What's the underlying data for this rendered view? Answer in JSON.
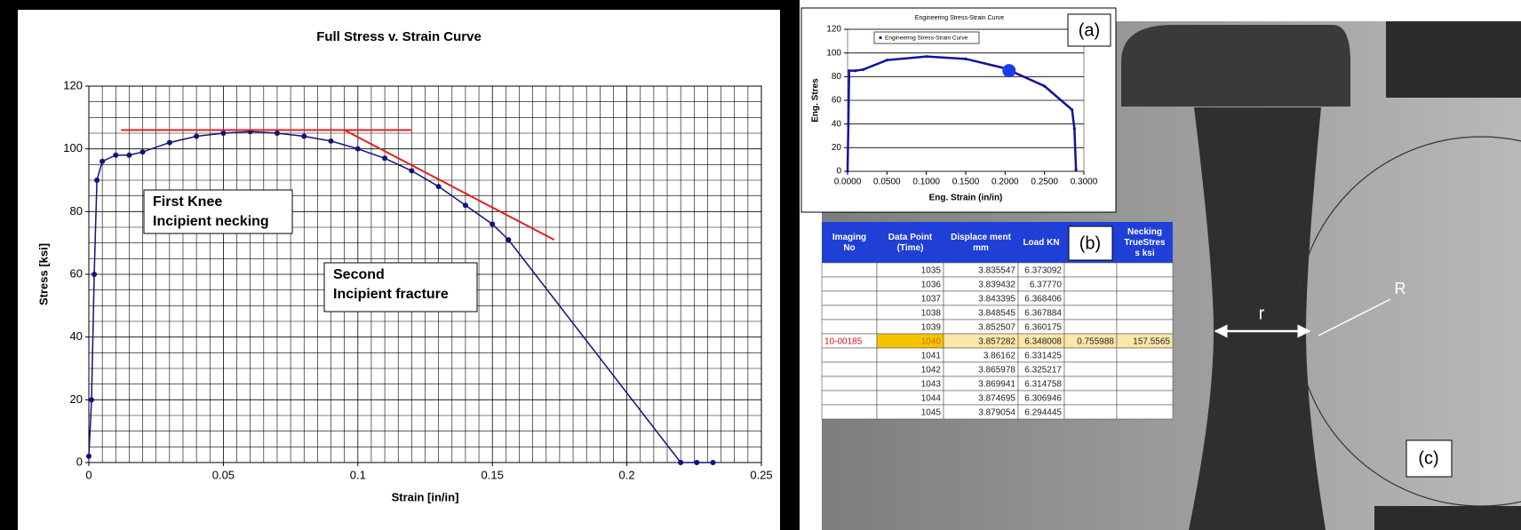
{
  "chart_data": [
    {
      "type": "line",
      "title": "Full Stress v. Strain Curve",
      "xlabel": "Strain [in/in]",
      "ylabel": "Stress [ksi]",
      "xlim": [
        0,
        0.25
      ],
      "xticks": [
        0,
        0.05,
        0.1,
        0.15,
        0.2,
        0.25
      ],
      "ylim": [
        0,
        120
      ],
      "yticks": [
        0,
        20,
        40,
        60,
        80,
        100,
        120
      ],
      "grid": "xy",
      "minor_grid": true,
      "series": [
        {
          "color": "#10137a",
          "marker": true,
          "x": [
            0,
            0.001,
            0.002,
            0.003,
            0.005,
            0.01,
            0.015,
            0.02,
            0.03,
            0.04,
            0.05,
            0.06,
            0.07,
            0.08,
            0.09,
            0.1,
            0.11,
            0.12,
            0.13,
            0.14,
            0.15,
            0.156,
            0.22,
            0.226,
            0.232
          ],
          "values": [
            2,
            20,
            60,
            90,
            96,
            98,
            98,
            99,
            102,
            104,
            105,
            105.5,
            105,
            104,
            102.5,
            100,
            97,
            93,
            88,
            82,
            76,
            71,
            0,
            0,
            0
          ]
        },
        {
          "color": "#e02020",
          "marker": false,
          "x": [
            0.012,
            0.12
          ],
          "values": [
            106,
            106
          ]
        },
        {
          "color": "#e02020",
          "marker": false,
          "x": [
            0.095,
            0.173
          ],
          "values": [
            106,
            71
          ]
        }
      ],
      "annotations": [
        {
          "lines": [
            "First Knee",
            "Incipient necking"
          ]
        },
        {
          "lines": [
            "Second",
            "Incipient fracture"
          ]
        }
      ]
    },
    {
      "type": "line",
      "title": "Engineering Stress-Strain Curve",
      "xlabel": "Eng. Strain (in/in)",
      "ylabel": "Eng. Stres",
      "label": "(a)",
      "xlim": [
        0,
        0.3
      ],
      "xticks": [
        {
          "value": 0,
          "label": "0.0000"
        },
        {
          "value": 0.05,
          "label": "0.0500"
        },
        {
          "value": 0.1,
          "label": "0.1000"
        },
        {
          "value": 0.15,
          "label": "0.1500"
        },
        {
          "value": 0.2,
          "label": "0.2000"
        },
        {
          "value": 0.25,
          "label": "0.2500"
        },
        {
          "value": 0.3,
          "label": "0.3000"
        }
      ],
      "ylim": [
        0,
        120
      ],
      "yticks": [
        0,
        20,
        40,
        60,
        80,
        100,
        120
      ],
      "grid": "y",
      "minor_grid": false,
      "series": [
        {
          "name": "Engineering Stress-Strain Curve",
          "color": "#10139a",
          "marker": true,
          "x": [
            0,
            0.001,
            0.002,
            0.01,
            0.02,
            0.05,
            0.1,
            0.15,
            0.2,
            0.25,
            0.285,
            0.288,
            0.29
          ],
          "values": [
            0,
            40,
            85,
            85,
            86,
            94,
            97,
            95,
            87,
            72,
            52,
            36,
            1
          ]
        }
      ],
      "highlight": {
        "x": 0.205,
        "y": 85
      }
    }
  ],
  "table": {
    "label": "(b)",
    "header": [
      "Imaging No",
      "Data Point (Time)",
      "Displace ment mm",
      "Load KN",
      null,
      "Necking TrueStres s ksi"
    ],
    "rows": [
      [
        null,
        "1035",
        "3.835547",
        "6.373092",
        null,
        null
      ],
      [
        null,
        "1036",
        "3.839432",
        "6.37770",
        null,
        null
      ],
      [
        null,
        "1037",
        "3.843395",
        "6.368406",
        null,
        null
      ],
      [
        null,
        "1038",
        "3.848545",
        "6.367884",
        null,
        null
      ],
      [
        null,
        "1039",
        "3.852507",
        "6.360175",
        null,
        null
      ],
      [
        "10-00185",
        "1040",
        "3.857282",
        "6.348008",
        "0.755988",
        "157.5565"
      ],
      [
        null,
        "1041",
        "3.86162",
        "6.331425",
        null,
        null
      ],
      [
        null,
        "1042",
        "3.865978",
        "6.325217",
        null,
        null
      ],
      [
        null,
        "1043",
        "3.869941",
        "6.314758",
        null,
        null
      ],
      [
        null,
        "1044",
        "3.874695",
        "6.306946",
        null,
        null
      ],
      [
        null,
        "1045",
        "3.879054",
        "6.294445",
        null,
        null
      ]
    ]
  },
  "photo": {
    "label": "(c)",
    "r": "r",
    "R": "R"
  }
}
